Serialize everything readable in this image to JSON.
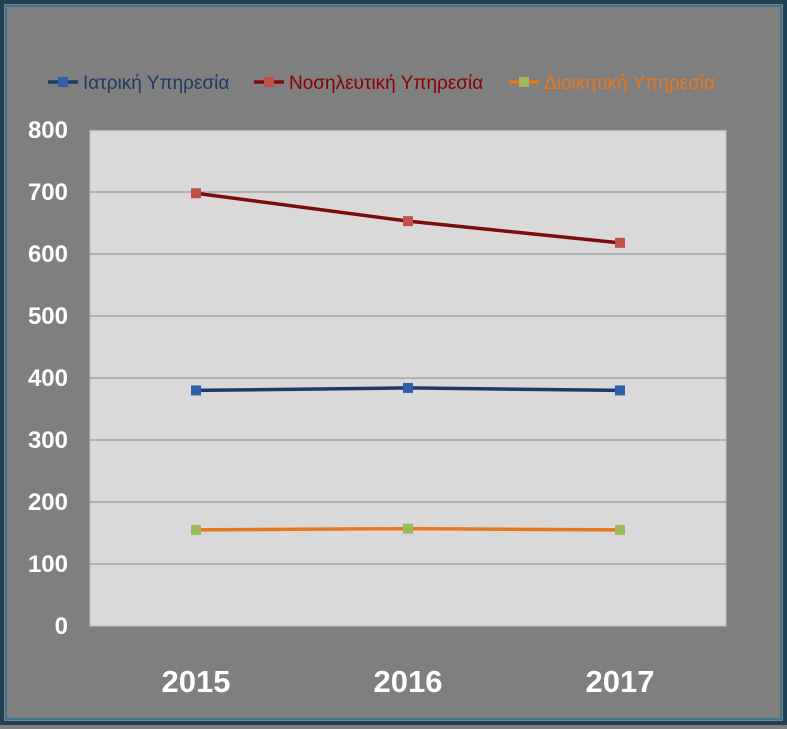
{
  "chart_data": {
    "type": "line",
    "categories": [
      "2015",
      "2016",
      "2017"
    ],
    "series": [
      {
        "name": "Ιατρική Υπηρεσία",
        "values": [
          380,
          384,
          380
        ],
        "line_color": "#1f3a68",
        "marker_color": "#2e5fa8",
        "text_color": "#1f3a68"
      },
      {
        "name": "Νοσηλευτική Υπηρεσία",
        "values": [
          698,
          653,
          618
        ],
        "line_color": "#7a0d0d",
        "marker_color": "#c0504d",
        "text_color": "#8b0000"
      },
      {
        "name": "Διοικητική Υπηρεσία",
        "values": [
          155,
          157,
          155
        ],
        "line_color": "#e8781e",
        "marker_color": "#9bbb59",
        "text_color": "#e8781e"
      }
    ],
    "y_ticks": [
      "0",
      "100",
      "200",
      "300",
      "400",
      "500",
      "600",
      "700",
      "800"
    ],
    "ylim": [
      0,
      800
    ],
    "grid": true,
    "legend_position": "top",
    "plot_background": "#d9d9d9",
    "page_background": "#7f7f7f"
  }
}
